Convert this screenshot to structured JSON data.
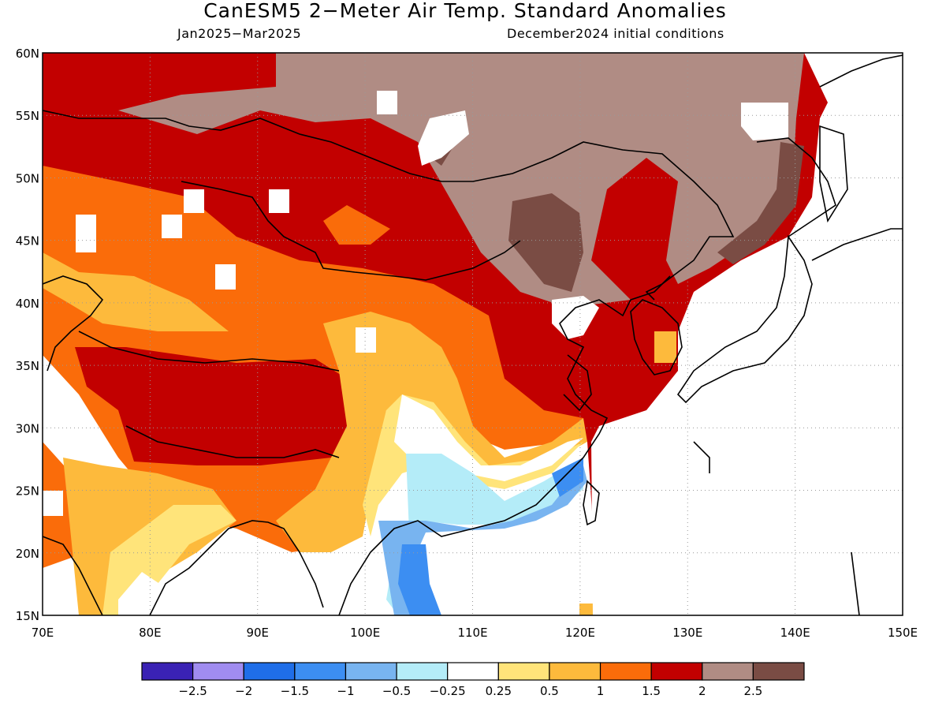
{
  "title": "CanESM5 2−Meter Air Temp. Standard Anomalies",
  "period": "Jan2025−Mar2025",
  "initial_conditions": "December2024 initial conditions",
  "map": {
    "lon_range": [
      70,
      150
    ],
    "lat_range": [
      15,
      60
    ],
    "lat_ticks": [
      "60N",
      "55N",
      "50N",
      "45N",
      "40N",
      "35N",
      "30N",
      "25N",
      "20N",
      "15N"
    ],
    "lon_ticks": [
      "70E",
      "80E",
      "90E",
      "100E",
      "110E",
      "120E",
      "130E",
      "140E",
      "150E"
    ],
    "grid": "dotted"
  },
  "colorbar": {
    "colors": [
      "#3a22b4",
      "#a08cf0",
      "#1f6ee8",
      "#3c8ef2",
      "#78b4f0",
      "#b4ecf8",
      "#ffffff",
      "#ffe47a",
      "#fdba3c",
      "#fa6c0a",
      "#c20000",
      "#b08c84",
      "#7a4c44"
    ],
    "labels": [
      "−2.5",
      "−2",
      "−1.5",
      "−1",
      "−0.5",
      "−0.25",
      "0.25",
      "0.5",
      "1",
      "1.5",
      "2",
      "2.5"
    ]
  }
}
